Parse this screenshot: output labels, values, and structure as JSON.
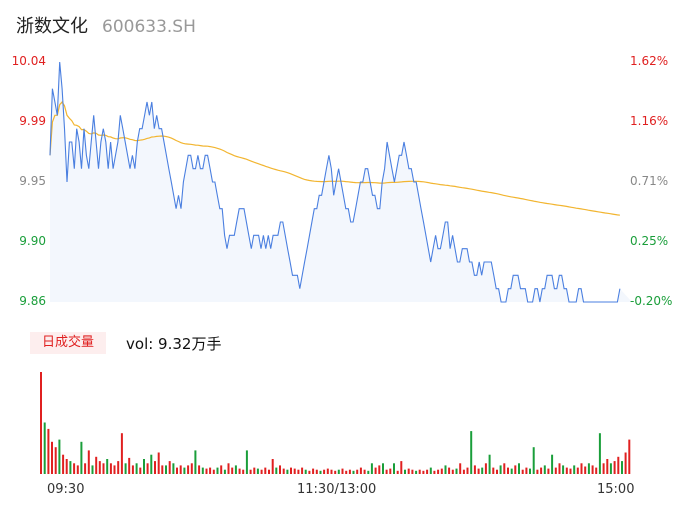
{
  "header": {
    "name": "浙数文化",
    "code": "600633.SH"
  },
  "colors": {
    "up": "#e02020",
    "down": "#1a9e3a",
    "neutral": "#888888",
    "price_line": "#4a7fe0",
    "avg_line": "#f2b530",
    "fill": "#f3f7fd"
  },
  "chart_data": [
    {
      "type": "line",
      "title": "",
      "y_left_labels": [
        "10.04",
        "9.99",
        "9.95",
        "9.90",
        "9.86"
      ],
      "y_right_labels": [
        "1.62%",
        "1.16%",
        "0.71%",
        "0.25%",
        "-0.20%"
      ],
      "ylim": [
        9.86,
        10.04
      ],
      "x_labels": [
        "09:30",
        "11:30/13:00",
        "15:00"
      ],
      "series": [
        {
          "x": [
            0,
            1,
            2,
            3,
            4,
            5,
            6,
            7,
            8,
            9,
            10,
            11,
            12,
            13,
            14,
            15,
            16,
            17,
            18,
            19,
            20,
            21,
            22,
            23,
            24,
            25,
            26,
            27,
            28,
            29,
            30,
            31,
            32,
            33,
            34,
            35,
            36,
            37,
            38,
            39,
            40,
            41,
            42,
            43,
            44,
            45,
            46,
            47,
            48,
            49,
            50,
            51,
            52,
            53,
            54,
            55,
            56,
            57,
            58,
            59,
            60,
            61,
            62,
            63,
            64,
            65,
            66,
            67,
            68,
            69,
            70,
            71,
            72,
            73,
            74,
            75,
            76,
            77,
            78,
            79,
            80,
            81,
            82,
            83,
            84,
            85,
            86,
            87,
            88,
            89,
            90,
            91,
            92,
            93,
            94,
            95,
            96,
            97,
            98,
            99,
            100,
            101,
            102,
            103,
            104,
            105,
            106,
            107,
            108,
            109,
            110,
            111,
            112,
            113,
            114,
            115,
            116,
            117,
            118,
            119,
            120,
            121,
            122,
            123,
            124,
            125,
            126,
            127,
            128,
            129,
            130,
            131,
            132,
            133,
            134,
            135,
            136,
            137,
            138,
            139,
            140,
            141,
            142,
            143,
            144,
            145,
            146,
            147,
            148,
            149,
            150,
            151,
            152,
            153,
            154,
            155,
            156,
            157,
            158,
            159,
            160,
            161,
            162,
            163,
            164,
            165,
            166,
            167,
            168,
            169,
            170,
            171,
            172,
            173,
            174,
            175,
            176,
            177,
            178,
            179,
            180,
            181,
            182,
            183,
            184,
            185,
            186,
            187,
            188,
            189,
            190,
            191,
            192,
            193,
            194,
            195,
            196,
            197,
            198,
            199,
            200,
            201,
            202,
            203,
            204,
            205,
            206,
            207,
            208,
            209,
            210,
            211,
            212,
            213,
            214,
            215,
            216,
            217,
            218,
            219,
            220,
            221,
            222,
            223,
            224,
            225,
            226,
            227,
            228,
            229,
            230,
            231,
            232,
            233,
            234,
            235,
            236,
            237,
            238,
            239,
            240
          ],
          "price": [
            9.97,
            10.02,
            10.01,
            10.0,
            10.04,
            10.02,
            9.99,
            9.95,
            9.98,
            9.98,
            9.96,
            9.99,
            9.98,
            9.96,
            9.99,
            9.97,
            9.96,
            9.98,
            10.0,
            9.98,
            9.96,
            9.98,
            9.99,
            9.98,
            9.96,
            9.98,
            9.96,
            9.97,
            9.98,
            10.0,
            9.99,
            9.98,
            9.97,
            9.96,
            9.97,
            9.96,
            9.98,
            9.99,
            9.99,
            10.0,
            10.01,
            10.0,
            10.01,
            9.99,
            10.0,
            9.99,
            9.99,
            9.98,
            9.97,
            9.96,
            9.95,
            9.94,
            9.93,
            9.94,
            9.93,
            9.95,
            9.96,
            9.97,
            9.97,
            9.96,
            9.96,
            9.97,
            9.96,
            9.96,
            9.97,
            9.97,
            9.96,
            9.95,
            9.95,
            9.94,
            9.93,
            9.93,
            9.91,
            9.9,
            9.91,
            9.91,
            9.91,
            9.92,
            9.93,
            9.93,
            9.93,
            9.92,
            9.91,
            9.9,
            9.91,
            9.91,
            9.91,
            9.9,
            9.91,
            9.9,
            9.91,
            9.9,
            9.91,
            9.91,
            9.91,
            9.92,
            9.92,
            9.91,
            9.9,
            9.89,
            9.88,
            9.88,
            9.88,
            9.87,
            9.88,
            9.89,
            9.9,
            9.91,
            9.92,
            9.93,
            9.93,
            9.94,
            9.94,
            9.95,
            9.96,
            9.97,
            9.96,
            9.94,
            9.95,
            9.96,
            9.95,
            9.94,
            9.93,
            9.93,
            9.92,
            9.92,
            9.93,
            9.94,
            9.95,
            9.95,
            9.96,
            9.96,
            9.95,
            9.94,
            9.94,
            9.93,
            9.93,
            9.95,
            9.96,
            9.98,
            9.97,
            9.96,
            9.95,
            9.96,
            9.97,
            9.97,
            9.98,
            9.97,
            9.96,
            9.96,
            9.95,
            9.95,
            9.94,
            9.93,
            9.92,
            9.91,
            9.9,
            9.89,
            9.9,
            9.91,
            9.9,
            9.9,
            9.91,
            9.92,
            9.92,
            9.9,
            9.91,
            9.9,
            9.89,
            9.89,
            9.9,
            9.9,
            9.9,
            9.89,
            9.89,
            9.88,
            9.88,
            9.89,
            9.88,
            9.89,
            9.89,
            9.89,
            9.89,
            9.88,
            9.87,
            9.87,
            9.86,
            9.86,
            9.86,
            9.87,
            9.87,
            9.88,
            9.88,
            9.88,
            9.87,
            9.87,
            9.87,
            9.86,
            9.86,
            9.86,
            9.87,
            9.87,
            9.86,
            9.87,
            9.87,
            9.88,
            9.88,
            9.88,
            9.87,
            9.87,
            9.88,
            9.88,
            9.87,
            9.87,
            9.86,
            9.86,
            9.86,
            9.86,
            9.87,
            9.87,
            9.86,
            9.86,
            9.86,
            9.86,
            9.86,
            9.86,
            9.86,
            9.86,
            9.86,
            9.86,
            9.86,
            9.86,
            9.86,
            9.86,
            9.86,
            9.87
          ],
          "name": ""
        }
      ]
    },
    {
      "type": "bar",
      "title": "",
      "label": "日成交量",
      "vol_label": "vol: 9.32万手",
      "bars": [
        [
          95,
          "up"
        ],
        [
          48,
          "down"
        ],
        [
          42,
          "up"
        ],
        [
          30,
          "up"
        ],
        [
          25,
          "up"
        ],
        [
          32,
          "down"
        ],
        [
          18,
          "up"
        ],
        [
          14,
          "up"
        ],
        [
          12,
          "down"
        ],
        [
          10,
          "up"
        ],
        [
          8,
          "up"
        ],
        [
          30,
          "down"
        ],
        [
          10,
          "up"
        ],
        [
          22,
          "up"
        ],
        [
          8,
          "down"
        ],
        [
          16,
          "up"
        ],
        [
          12,
          "up"
        ],
        [
          10,
          "up"
        ],
        [
          14,
          "down"
        ],
        [
          10,
          "up"
        ],
        [
          8,
          "up"
        ],
        [
          12,
          "up"
        ],
        [
          38,
          "up"
        ],
        [
          10,
          "down"
        ],
        [
          15,
          "up"
        ],
        [
          8,
          "up"
        ],
        [
          10,
          "down"
        ],
        [
          6,
          "up"
        ],
        [
          14,
          "down"
        ],
        [
          10,
          "up"
        ],
        [
          18,
          "down"
        ],
        [
          12,
          "up"
        ],
        [
          20,
          "up"
        ],
        [
          8,
          "up"
        ],
        [
          8,
          "down"
        ],
        [
          12,
          "up"
        ],
        [
          10,
          "down"
        ],
        [
          6,
          "up"
        ],
        [
          8,
          "up"
        ],
        [
          6,
          "down"
        ],
        [
          8,
          "up"
        ],
        [
          10,
          "up"
        ],
        [
          22,
          "down"
        ],
        [
          8,
          "up"
        ],
        [
          6,
          "down"
        ],
        [
          5,
          "up"
        ],
        [
          6,
          "up"
        ],
        [
          4,
          "up"
        ],
        [
          6,
          "down"
        ],
        [
          8,
          "up"
        ],
        [
          4,
          "down"
        ],
        [
          10,
          "up"
        ],
        [
          6,
          "up"
        ],
        [
          8,
          "down"
        ],
        [
          5,
          "up"
        ],
        [
          4,
          "up"
        ],
        [
          22,
          "down"
        ],
        [
          4,
          "up"
        ],
        [
          6,
          "up"
        ],
        [
          5,
          "down"
        ],
        [
          4,
          "up"
        ],
        [
          6,
          "up"
        ],
        [
          4,
          "up"
        ],
        [
          14,
          "up"
        ],
        [
          6,
          "down"
        ],
        [
          8,
          "up"
        ],
        [
          5,
          "up"
        ],
        [
          4,
          "down"
        ],
        [
          6,
          "up"
        ],
        [
          5,
          "up"
        ],
        [
          4,
          "up"
        ],
        [
          6,
          "up"
        ],
        [
          4,
          "down"
        ],
        [
          3,
          "up"
        ],
        [
          5,
          "up"
        ],
        [
          4,
          "up"
        ],
        [
          3,
          "down"
        ],
        [
          4,
          "up"
        ],
        [
          5,
          "up"
        ],
        [
          4,
          "up"
        ],
        [
          3,
          "up"
        ],
        [
          4,
          "down"
        ],
        [
          5,
          "up"
        ],
        [
          3,
          "up"
        ],
        [
          4,
          "up"
        ],
        [
          3,
          "down"
        ],
        [
          4,
          "up"
        ],
        [
          6,
          "up"
        ],
        [
          4,
          "up"
        ],
        [
          3,
          "down"
        ],
        [
          10,
          "down"
        ],
        [
          6,
          "up"
        ],
        [
          8,
          "up"
        ],
        [
          10,
          "down"
        ],
        [
          4,
          "up"
        ],
        [
          5,
          "up"
        ],
        [
          10,
          "down"
        ],
        [
          3,
          "up"
        ],
        [
          12,
          "up"
        ],
        [
          4,
          "down"
        ],
        [
          5,
          "up"
        ],
        [
          4,
          "up"
        ],
        [
          3,
          "down"
        ],
        [
          4,
          "up"
        ],
        [
          3,
          "up"
        ],
        [
          4,
          "up"
        ],
        [
          6,
          "down"
        ],
        [
          3,
          "up"
        ],
        [
          4,
          "up"
        ],
        [
          5,
          "up"
        ],
        [
          8,
          "down"
        ],
        [
          6,
          "up"
        ],
        [
          4,
          "up"
        ],
        [
          5,
          "down"
        ],
        [
          10,
          "up"
        ],
        [
          4,
          "up"
        ],
        [
          6,
          "up"
        ],
        [
          40,
          "down"
        ],
        [
          8,
          "up"
        ],
        [
          5,
          "up"
        ],
        [
          6,
          "down"
        ],
        [
          10,
          "up"
        ],
        [
          18,
          "down"
        ],
        [
          6,
          "up"
        ],
        [
          4,
          "up"
        ],
        [
          8,
          "down"
        ],
        [
          10,
          "up"
        ],
        [
          6,
          "up"
        ],
        [
          5,
          "down"
        ],
        [
          8,
          "up"
        ],
        [
          10,
          "down"
        ],
        [
          4,
          "up"
        ],
        [
          6,
          "up"
        ],
        [
          5,
          "down"
        ],
        [
          25,
          "down"
        ],
        [
          4,
          "up"
        ],
        [
          6,
          "up"
        ],
        [
          8,
          "down"
        ],
        [
          5,
          "up"
        ],
        [
          18,
          "down"
        ],
        [
          6,
          "up"
        ],
        [
          10,
          "up"
        ],
        [
          8,
          "down"
        ],
        [
          6,
          "up"
        ],
        [
          5,
          "up"
        ],
        [
          8,
          "down"
        ],
        [
          6,
          "up"
        ],
        [
          10,
          "up"
        ],
        [
          7,
          "up"
        ],
        [
          10,
          "down"
        ],
        [
          8,
          "up"
        ],
        [
          6,
          "up"
        ],
        [
          38,
          "down"
        ],
        [
          10,
          "up"
        ],
        [
          14,
          "up"
        ],
        [
          10,
          "down"
        ],
        [
          12,
          "up"
        ],
        [
          16,
          "up"
        ],
        [
          12,
          "down"
        ],
        [
          20,
          "up"
        ],
        [
          32,
          "up"
        ]
      ]
    }
  ]
}
